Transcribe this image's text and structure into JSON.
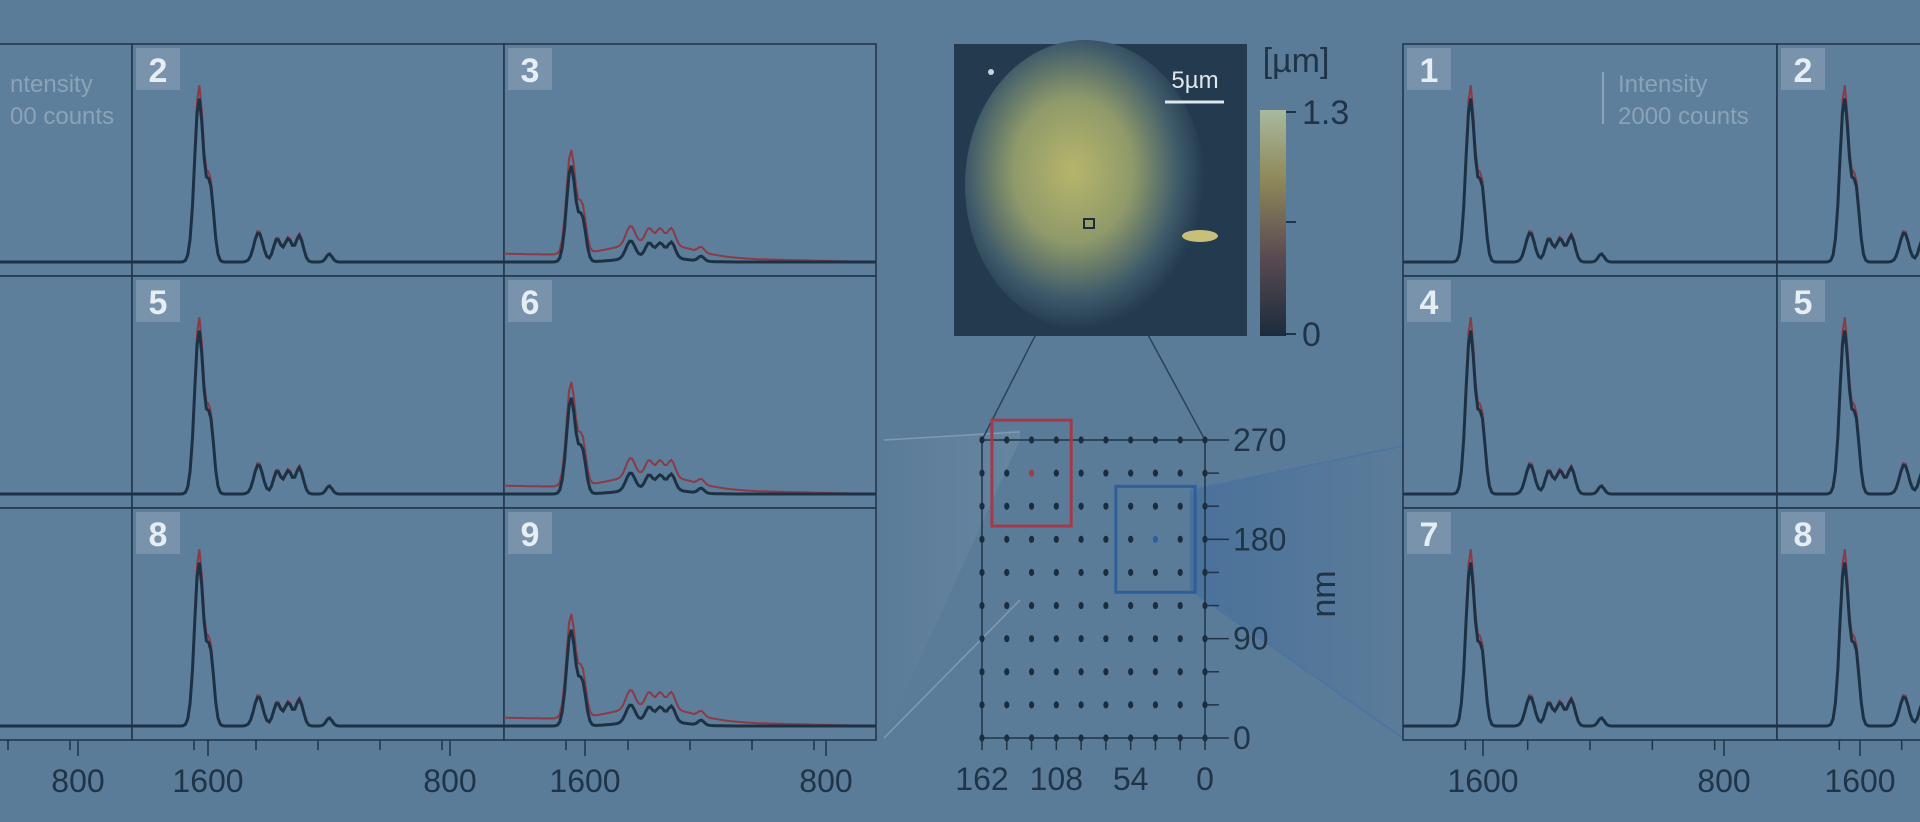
{
  "colors": {
    "background": "#5b7c99",
    "panel": "#5d7f9b",
    "frame": "#1f3447",
    "spectrum_dark": "#1d3144",
    "spectrum_red": "#8c3a45",
    "badge_bg": "#7893ab",
    "badge_text": "#e6edf3",
    "label": "#1f3447",
    "faint_text": "#8aa3b8",
    "dot": "#1b2c3c",
    "highlight_red": "#a23a48",
    "highlight_blue": "#2f5f9a"
  },
  "left_grid": {
    "labels": [
      "",
      "2",
      "3",
      "",
      "5",
      "6",
      "",
      "8",
      "9"
    ],
    "intensity_label": "ntensity",
    "intensity_counts": "00 counts",
    "x_ticks": [
      "800",
      "1600",
      "800",
      "1600",
      "800"
    ]
  },
  "right_grid": {
    "labels": [
      "1",
      "2",
      "4",
      "5",
      "7",
      "8"
    ],
    "intensity_label": "Intensity",
    "intensity_counts": "2000 counts",
    "x_ticks": [
      "1600",
      "800",
      "1600"
    ]
  },
  "afm_map": {
    "scale_bar": "5µm",
    "colorbar_unit": "[µm]",
    "colorbar_max": "1.3",
    "colorbar_min": "0"
  },
  "grid_map": {
    "x_ticks": [
      "162",
      "108",
      "54",
      "0"
    ],
    "y_ticks": [
      "270",
      "180",
      "90",
      "0"
    ],
    "y_label": "nm",
    "rows": 10,
    "cols": 10,
    "red_box": {
      "cols": [
        1,
        3
      ],
      "rows": [
        7,
        9
      ]
    },
    "blue_box": {
      "cols": [
        6,
        8
      ],
      "rows": [
        5,
        7
      ]
    },
    "red_dot": {
      "col": 2,
      "row": 8
    },
    "blue_dot": {
      "col": 7,
      "row": 6
    }
  },
  "chart_data": [
    {
      "type": "line",
      "title": "",
      "description_series": [
        "dark",
        "red"
      ],
      "panels": [
        "2",
        "3",
        "5",
        "6",
        "8",
        "9"
      ],
      "x_ticks": [
        "1600",
        "800"
      ],
      "xlabel": "",
      "ylabel": ""
    },
    {
      "type": "heatmap",
      "colorbar": {
        "min": 0,
        "max": 1.3,
        "unit": "[µm]"
      }
    },
    {
      "type": "scatter",
      "x_ticks": [
        162,
        108,
        54,
        0
      ],
      "y_ticks": [
        0,
        90,
        180,
        270
      ],
      "ylabel": "nm"
    }
  ]
}
